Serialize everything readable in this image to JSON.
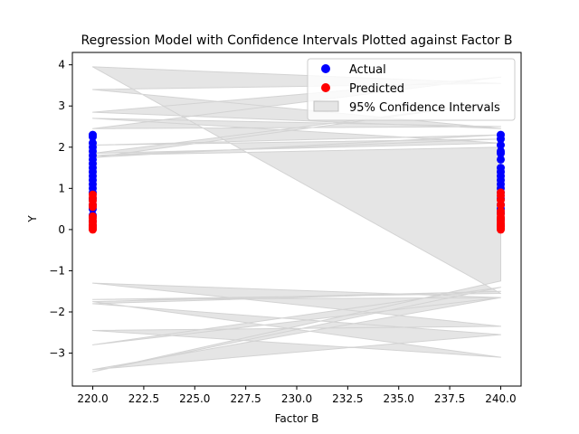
{
  "chart_data": {
    "type": "scatter",
    "title": "Regression Model with Confidence Intervals Plotted against Factor B",
    "xlabel": "Factor B",
    "ylabel": "Y",
    "xlim": [
      219,
      241
    ],
    "ylim": [
      -3.8,
      4.3
    ],
    "xticks": [
      220.0,
      222.5,
      225.0,
      227.5,
      230.0,
      232.5,
      235.0,
      237.5,
      240.0
    ],
    "xtick_labels": [
      "220.0",
      "222.5",
      "225.0",
      "227.5",
      "230.0",
      "232.5",
      "235.0",
      "237.5",
      "240.0"
    ],
    "yticks": [
      -3,
      -2,
      -1,
      0,
      1,
      2,
      3,
      4
    ],
    "ytick_labels": [
      "−3",
      "−2",
      "−1",
      "0",
      "1",
      "2",
      "3",
      "4"
    ],
    "grid": false,
    "legend_position": "top-right",
    "series": [
      {
        "name": "Actual",
        "color": "#0000ff",
        "points": [
          [
            220,
            2.3
          ],
          [
            220,
            2.25
          ],
          [
            220,
            2.1
          ],
          [
            220,
            2.0
          ],
          [
            220,
            1.9
          ],
          [
            220,
            1.8
          ],
          [
            220,
            1.7
          ],
          [
            220,
            1.6
          ],
          [
            220,
            1.5
          ],
          [
            220,
            1.4
          ],
          [
            220,
            1.3
          ],
          [
            220,
            1.2
          ],
          [
            220,
            1.1
          ],
          [
            220,
            1.0
          ],
          [
            220,
            0.9
          ],
          [
            220,
            0.75
          ],
          [
            220,
            0.6
          ],
          [
            220,
            0.5
          ],
          [
            220,
            0.35
          ],
          [
            220,
            0.2
          ],
          [
            220,
            0.1
          ],
          [
            240,
            2.3
          ],
          [
            240,
            2.2
          ],
          [
            240,
            2.05
          ],
          [
            240,
            1.9
          ],
          [
            240,
            1.85
          ],
          [
            240,
            1.7
          ],
          [
            240,
            1.5
          ],
          [
            240,
            1.4
          ],
          [
            240,
            1.3
          ],
          [
            240,
            1.2
          ],
          [
            240,
            1.1
          ],
          [
            240,
            1.0
          ],
          [
            240,
            0.9
          ],
          [
            240,
            0.75
          ],
          [
            240,
            0.6
          ],
          [
            240,
            0.5
          ],
          [
            240,
            0.4
          ],
          [
            240,
            0.25
          ],
          [
            240,
            0.1
          ]
        ]
      },
      {
        "name": "Predicted",
        "color": "#ff0000",
        "points": [
          [
            220,
            0.85
          ],
          [
            220,
            0.78
          ],
          [
            220,
            0.7
          ],
          [
            220,
            0.6
          ],
          [
            220,
            0.55
          ],
          [
            220,
            0.32
          ],
          [
            220,
            0.28
          ],
          [
            220,
            0.22
          ],
          [
            220,
            0.18
          ],
          [
            220,
            0.12
          ],
          [
            220,
            0.08
          ],
          [
            220,
            0.05
          ],
          [
            220,
            0.02
          ],
          [
            220,
            0.0
          ],
          [
            240,
            0.9
          ],
          [
            240,
            0.82
          ],
          [
            240,
            0.72
          ],
          [
            240,
            0.6
          ],
          [
            240,
            0.45
          ],
          [
            240,
            0.38
          ],
          [
            240,
            0.3
          ],
          [
            240,
            0.25
          ],
          [
            240,
            0.2
          ],
          [
            240,
            0.15
          ],
          [
            240,
            0.1
          ],
          [
            240,
            0.07
          ],
          [
            240,
            0.03
          ],
          [
            240,
            0.0
          ]
        ]
      }
    ],
    "confidence_band": {
      "name": "95% Confidence Intervals",
      "fill": "#d3d3d3",
      "upper": [
        [
          220,
          3.95
        ],
        [
          240,
          3.55
        ],
        [
          220,
          3.4
        ],
        [
          240,
          2.45
        ],
        [
          220,
          2.85
        ],
        [
          240,
          3.7
        ],
        [
          220,
          2.45
        ],
        [
          240,
          2.5
        ],
        [
          220,
          2.7
        ],
        [
          240,
          2.1
        ],
        [
          220,
          1.85
        ],
        [
          240,
          3.1
        ],
        [
          220,
          1.75
        ],
        [
          240,
          2.3
        ],
        [
          220,
          2.05
        ],
        [
          240,
          2.2
        ],
        [
          220,
          1.8
        ],
        [
          240,
          2.0
        ]
      ],
      "lower": [
        [
          240,
          -1.25
        ],
        [
          220,
          -3.45
        ],
        [
          240,
          -1.4
        ],
        [
          220,
          -2.8
        ],
        [
          240,
          -1.65
        ],
        [
          220,
          -1.3
        ],
        [
          240,
          -2.35
        ],
        [
          220,
          -2.45
        ],
        [
          240,
          -3.1
        ],
        [
          220,
          -1.75
        ],
        [
          240,
          -1.5
        ],
        [
          220,
          -1.8
        ],
        [
          240,
          -2.55
        ],
        [
          220,
          -3.4
        ],
        [
          240,
          -1.65
        ],
        [
          220,
          -1.7
        ],
        [
          240,
          -1.55
        ]
      ]
    }
  }
}
